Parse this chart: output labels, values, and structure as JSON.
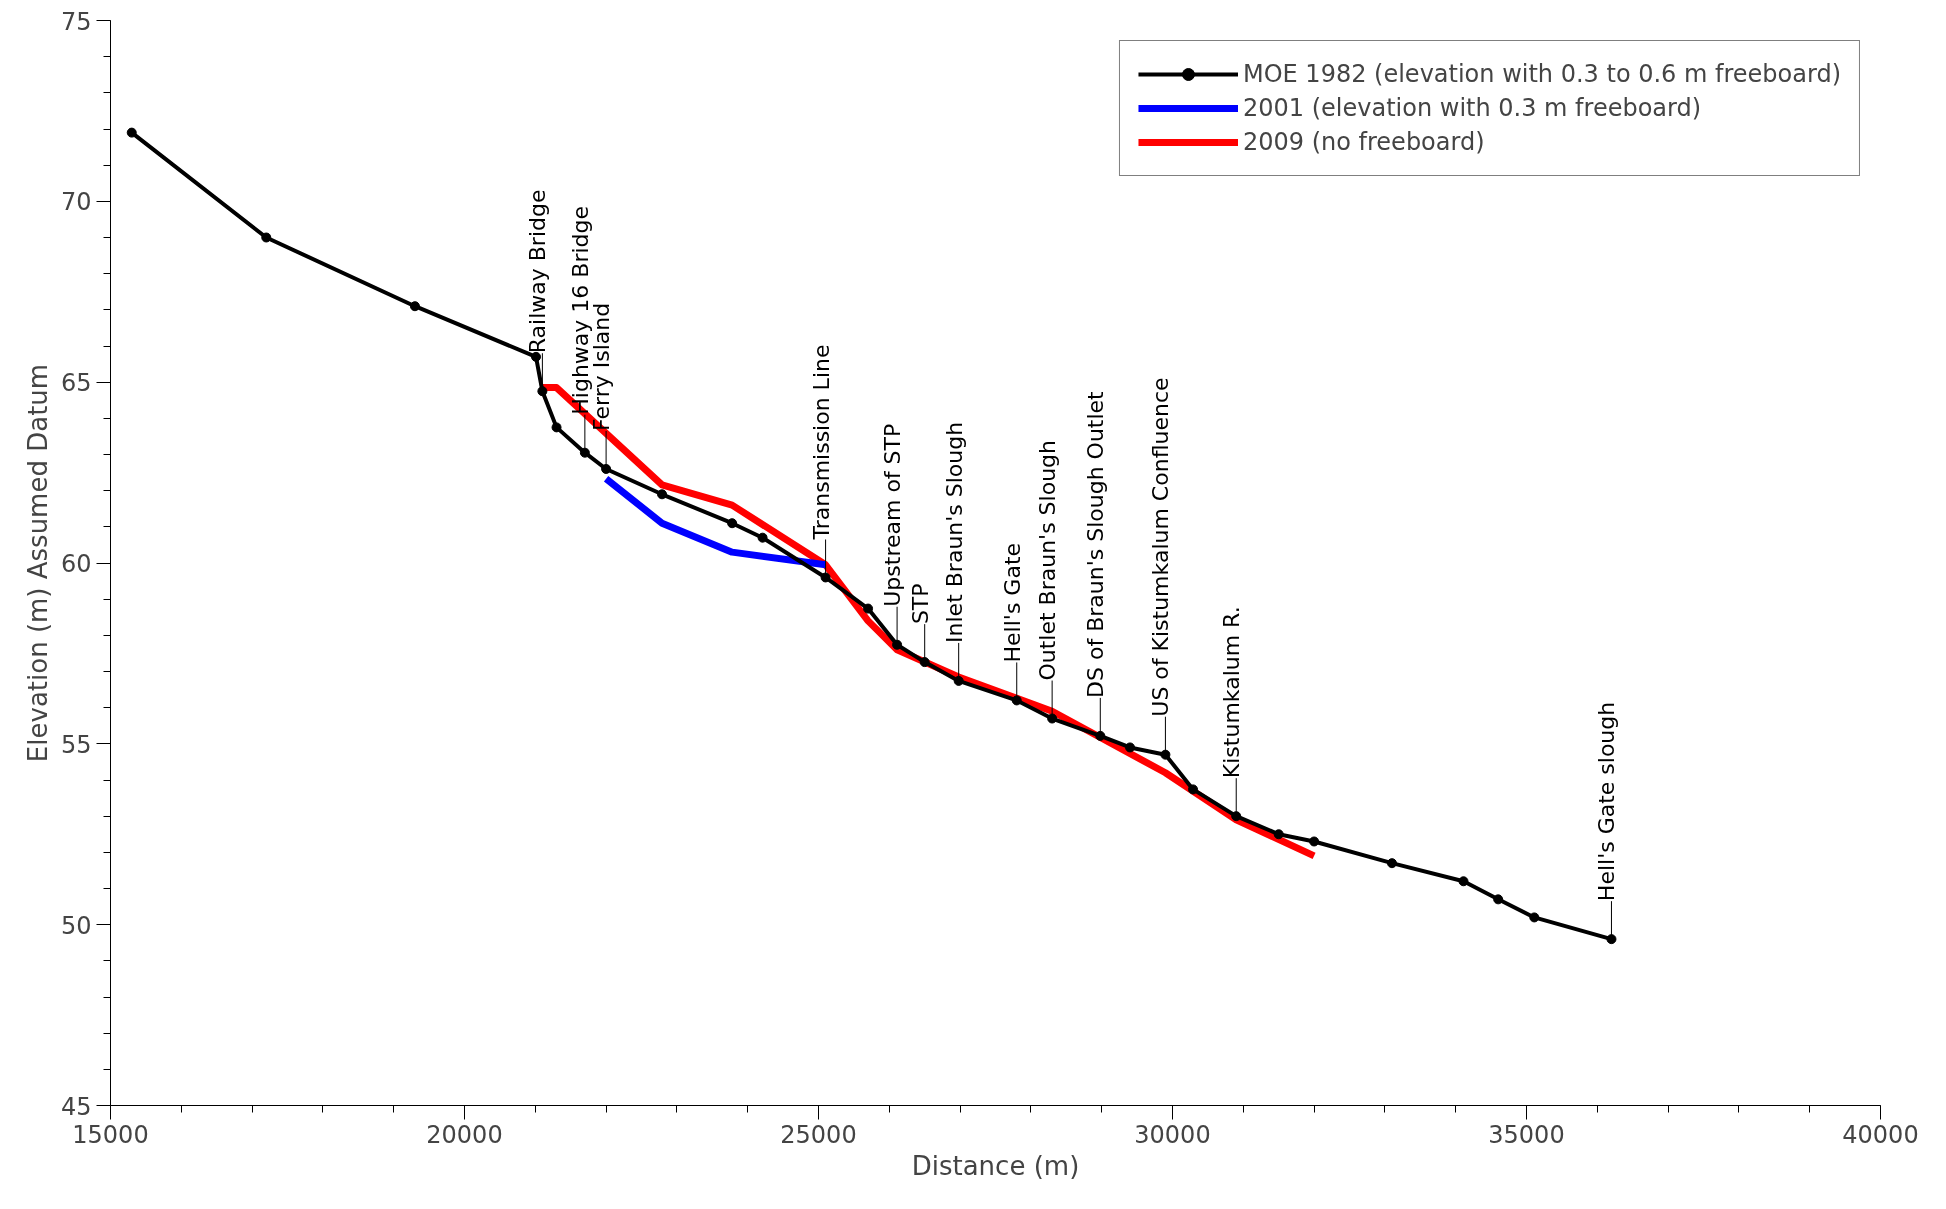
{
  "chart_data": {
    "type": "line",
    "xlabel": "Distance (m)",
    "ylabel": "Elevation (m) Assumed Datum",
    "xlim": [
      15000,
      40000
    ],
    "xticks": [
      15000,
      20000,
      25000,
      30000,
      35000,
      40000
    ],
    "ylim": [
      45,
      75
    ],
    "yticks": [
      45,
      50,
      55,
      60,
      65,
      70,
      75
    ],
    "grid": false,
    "legend": "top right",
    "line_style": "solid",
    "series": [
      {
        "name": "MOE 1982 (elevation with 0.3 to 0.6 m freeboard)",
        "color": "#000000",
        "marker": "circle",
        "x": [
          15300,
          17200,
          19300,
          21010,
          21100,
          21300,
          21700,
          22000,
          22790,
          23780,
          24210,
          25100,
          25700,
          26110,
          26500,
          26980,
          27800,
          28300,
          28980,
          29400,
          29900,
          30290,
          30900,
          31500,
          32000,
          33100,
          34110,
          34600,
          35110,
          36200
        ],
        "values": [
          71.9,
          69.0,
          67.1,
          65.7,
          64.75,
          63.75,
          63.05,
          62.6,
          61.9,
          61.1,
          60.7,
          59.6,
          58.74,
          57.74,
          57.26,
          56.74,
          56.2,
          55.7,
          55.22,
          54.9,
          54.7,
          53.74,
          53.0,
          52.5,
          52.3,
          51.7,
          51.2,
          50.7,
          50.2,
          49.6
        ]
      },
      {
        "name": "2001 (elevation with 0.3 m freeboard)",
        "color": "#0000ff",
        "marker": "none",
        "x": [
          22000,
          22790,
          23780,
          25100
        ],
        "values": [
          62.33,
          61.1,
          60.3,
          59.95
        ]
      },
      {
        "name": "2009 (no freeboard)",
        "color": "#ff0000",
        "marker": "none",
        "x": [
          21100,
          21300,
          22790,
          23780,
          25100,
          25700,
          26110,
          26980,
          28300,
          29900,
          30900,
          32000
        ],
        "values": [
          64.85,
          64.85,
          62.16,
          61.6,
          59.95,
          58.4,
          57.6,
          56.85,
          55.9,
          54.2,
          52.9,
          51.9
        ]
      }
    ],
    "annotations": [
      {
        "text": "Railway Bridge",
        "x": 21100,
        "y": 64.75
      },
      {
        "text": "Highway 16 Bridge",
        "x": 21700,
        "y": 63.05
      },
      {
        "text": "Ferry Island",
        "x": 22000,
        "y": 62.6
      },
      {
        "text": "Transmission Line",
        "x": 25100,
        "y": 59.6
      },
      {
        "text": "Upstream of STP",
        "x": 26110,
        "y": 57.74
      },
      {
        "text": "STP",
        "x": 26500,
        "y": 57.26
      },
      {
        "text": "Inlet Braun's Slough",
        "x": 26980,
        "y": 56.74
      },
      {
        "text": "Hell's Gate",
        "x": 27800,
        "y": 56.2
      },
      {
        "text": "Outlet Braun's Slough",
        "x": 28300,
        "y": 55.7
      },
      {
        "text": "DS of Braun's Slough Outlet",
        "x": 28980,
        "y": 55.22
      },
      {
        "text": "US of Kistumkalum Confluence",
        "x": 29900,
        "y": 54.7
      },
      {
        "text": "Kistumkalum R.",
        "x": 30900,
        "y": 53.0
      },
      {
        "text": "Hell's Gate slough",
        "x": 36200,
        "y": 49.6
      }
    ]
  }
}
